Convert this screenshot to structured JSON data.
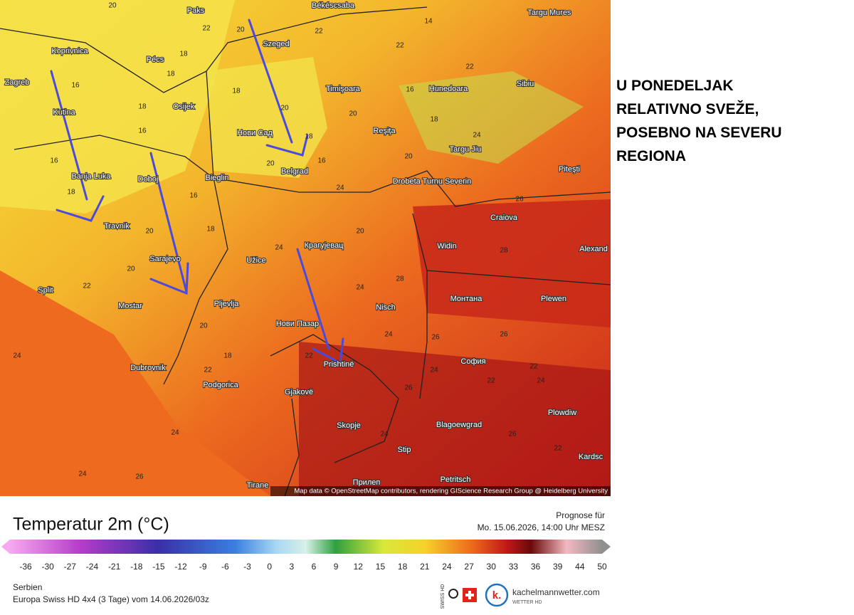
{
  "annotation": {
    "lines": [
      "U PONEDELJAK",
      "RELATIVNO SVEŽE,",
      "POSEBNO NA SEVERU",
      "REGIONA"
    ]
  },
  "map": {
    "cities": [
      "Paks",
      "Békéscsaba",
      "Targu Mures",
      "Koprivnica",
      "Pécs",
      "Szeged",
      "Zagreb",
      "Osijek",
      "Timişoara",
      "Hunedoara",
      "Sibiu",
      "Kutina",
      "Нови Сад",
      "Reşiţa",
      "Targu Jiu",
      "Belgrad",
      "Banja Luka",
      "Doboj",
      "Bieglin",
      "Drobeta Turnu Severin",
      "Piteşti",
      "Travnik",
      "Craiova",
      "Крагујевац",
      "Sarajevo",
      "Užice",
      "Widin",
      "Alexand",
      "Split",
      "Mostar",
      "Pljevlja",
      "Nisch",
      "Монтана",
      "Plewen",
      "Нови Пазар",
      "Dubrovnik",
      "Prishtinë",
      "София",
      "Podgorica",
      "Gjakovë",
      "Skopje",
      "Plowdiw",
      "Blagoewgrad",
      "Stip",
      "Petritsch",
      "Tirane",
      "Прилеп",
      "Kardsc"
    ],
    "temperature_labels": [
      20,
      22,
      20,
      22,
      18,
      18,
      16,
      18,
      20,
      18,
      16,
      16,
      18,
      20,
      16,
      18,
      20,
      14,
      16,
      22,
      18,
      20,
      22,
      24,
      16,
      18,
      20,
      24,
      28,
      26,
      24,
      20,
      20,
      22,
      20,
      28,
      26,
      24,
      24,
      22,
      18,
      22,
      26,
      22,
      24,
      24,
      24,
      26,
      22,
      24,
      26,
      24,
      22,
      24,
      26,
      22
    ],
    "attribution": "Map data © OpenStreetMap contributors, rendering GIScience Research Group @ Heidelberg University"
  },
  "legend": {
    "title": "Temperatur 2m (°C)",
    "ticks": [
      -36,
      -30,
      -27,
      -24,
      -21,
      -18,
      -15,
      -12,
      -9,
      -6,
      -3,
      0,
      3,
      6,
      9,
      12,
      15,
      18,
      21,
      24,
      27,
      30,
      33,
      36,
      39,
      44,
      50
    ]
  },
  "forecast": {
    "label": "Prognose für",
    "time": "Mo. 15.06.2026, 14:00 Uhr MESZ"
  },
  "footer": {
    "region": "Serbien",
    "model": "Europa Swiss HD 4x4 (3 Tage) vom 14.06.2026/03z"
  },
  "brand": {
    "name": "kachelmannwetter.com",
    "sub": "WETTER HD",
    "swiss": "SWISS HD"
  }
}
